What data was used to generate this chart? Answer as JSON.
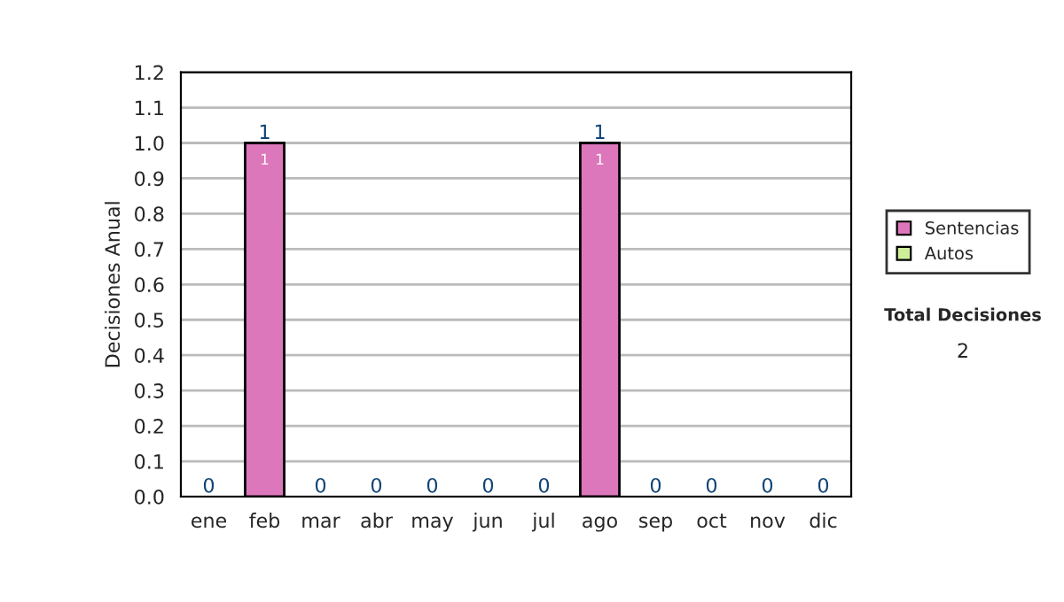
{
  "chart_data": {
    "type": "bar",
    "stacked": true,
    "ylabel": "Decisiones Anual",
    "categories": [
      "ene",
      "feb",
      "mar",
      "abr",
      "may",
      "jun",
      "jul",
      "ago",
      "sep",
      "oct",
      "nov",
      "dic"
    ],
    "series": [
      {
        "name": "Sentencias",
        "color": "#dd77bb",
        "values": [
          0,
          1,
          0,
          0,
          0,
          0,
          0,
          1,
          0,
          0,
          0,
          0
        ],
        "value_labels": [
          null,
          "1",
          null,
          null,
          null,
          null,
          null,
          "1",
          null,
          null,
          null,
          null
        ]
      },
      {
        "name": "Autos",
        "color": "#ccee99",
        "values": [
          0,
          0,
          0,
          0,
          0,
          0,
          0,
          0,
          0,
          0,
          0,
          0
        ]
      }
    ],
    "totals": [
      "0",
      "1",
      "0",
      "0",
      "0",
      "0",
      "0",
      "1",
      "0",
      "0",
      "0",
      "0"
    ],
    "ylim": [
      0,
      1.2
    ],
    "yticks": [
      {
        "value": 0,
        "label": "0.0"
      },
      {
        "value": 0.1,
        "label": "0.1"
      },
      {
        "value": 0.2,
        "label": "0.2"
      },
      {
        "value": 0.3,
        "label": "0.3"
      },
      {
        "value": 0.4,
        "label": "0.4"
      },
      {
        "value": 0.5,
        "label": "0.5"
      },
      {
        "value": 0.6,
        "label": "0.6"
      },
      {
        "value": 0.7,
        "label": "0.7"
      },
      {
        "value": 0.8,
        "label": "0.8"
      },
      {
        "value": 0.9,
        "label": "0.9"
      },
      {
        "value": 1.0,
        "label": "1.0"
      },
      {
        "value": 1.1,
        "label": "1.1"
      },
      {
        "value": 1.2,
        "label": "1.2"
      }
    ],
    "grid": "y",
    "legend": "right",
    "annotations": [
      "Total Decisiones",
      "2"
    ]
  }
}
